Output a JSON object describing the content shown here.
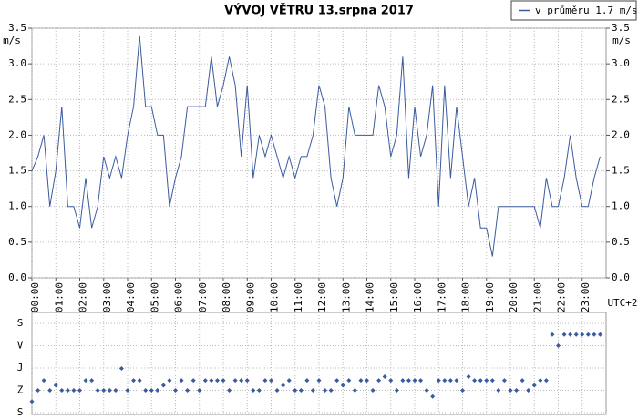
{
  "chart_data": [
    {
      "type": "line",
      "title": "VÝVOJ VĚTRU  13.srpna 2017",
      "y_unit": "m/s",
      "xlabel": "UTC+2",
      "legend": "top-right",
      "grid": true,
      "x": [
        0,
        0.25,
        0.5,
        0.75,
        1,
        1.25,
        1.5,
        1.75,
        2,
        2.25,
        2.5,
        2.75,
        3,
        3.25,
        3.5,
        3.75,
        4,
        4.25,
        4.5,
        4.75,
        5,
        5.25,
        5.5,
        5.75,
        6,
        6.25,
        6.5,
        6.75,
        7,
        7.25,
        7.5,
        7.75,
        8,
        8.25,
        8.5,
        8.75,
        9,
        9.25,
        9.5,
        9.75,
        10,
        10.25,
        10.5,
        10.75,
        11,
        11.25,
        11.5,
        11.75,
        12,
        12.25,
        12.5,
        12.75,
        13,
        13.25,
        13.5,
        13.75,
        14,
        14.25,
        14.5,
        14.75,
        15,
        15.25,
        15.5,
        15.75,
        16,
        16.25,
        16.5,
        16.75,
        17,
        17.25,
        17.5,
        17.75,
        18,
        18.25,
        18.5,
        18.75,
        19,
        19.25,
        19.5,
        19.75,
        20,
        20.25,
        20.5,
        20.75,
        21,
        21.25,
        21.5,
        21.75,
        22,
        22.25,
        22.5,
        22.75,
        23,
        23.25,
        23.5,
        23.75
      ],
      "series": [
        {
          "name": "v průměru 1.7 m/s",
          "color": "#3b5b9e",
          "values": [
            1.5,
            1.7,
            2.0,
            1.0,
            1.5,
            2.4,
            1.0,
            1.0,
            0.7,
            1.4,
            0.7,
            1.0,
            1.7,
            1.4,
            1.7,
            1.4,
            2.0,
            2.4,
            3.4,
            2.4,
            2.4,
            2.0,
            2.0,
            1.0,
            1.4,
            1.7,
            2.4,
            2.4,
            2.4,
            2.4,
            3.1,
            2.4,
            2.7,
            3.1,
            2.7,
            1.7,
            2.7,
            1.4,
            2.0,
            1.7,
            2.0,
            1.7,
            1.4,
            1.7,
            1.4,
            1.7,
            1.7,
            2.0,
            2.7,
            2.4,
            1.4,
            1.0,
            1.4,
            2.4,
            2.0,
            2.0,
            2.0,
            2.0,
            2.7,
            2.4,
            1.7,
            2.0,
            3.1,
            1.4,
            2.4,
            1.7,
            2.0,
            2.7,
            1.0,
            2.7,
            1.4,
            2.4,
            1.7,
            1.0,
            1.4,
            0.7,
            0.7,
            0.3,
            1.0,
            1.0,
            1.0,
            1.0,
            1.0,
            1.0,
            1.0,
            0.7,
            1.4,
            1.0,
            1.0,
            1.4,
            2.0,
            1.4,
            1.0,
            1.0,
            1.4,
            1.7
          ]
        }
      ],
      "xlim": [
        0,
        24
      ],
      "xticks": [
        {
          "value": 0,
          "label": "00:00"
        },
        {
          "value": 1,
          "label": "01:00"
        },
        {
          "value": 2,
          "label": "02:00"
        },
        {
          "value": 3,
          "label": "03:00"
        },
        {
          "value": 4,
          "label": "04:00"
        },
        {
          "value": 5,
          "label": "05:00"
        },
        {
          "value": 6,
          "label": "06:00"
        },
        {
          "value": 7,
          "label": "07:00"
        },
        {
          "value": 8,
          "label": "08:00"
        },
        {
          "value": 9,
          "label": "09:00"
        },
        {
          "value": 10,
          "label": "10:00"
        },
        {
          "value": 11,
          "label": "11:00"
        },
        {
          "value": 12,
          "label": "12:00"
        },
        {
          "value": 13,
          "label": "13:00"
        },
        {
          "value": 14,
          "label": "14:00"
        },
        {
          "value": 15,
          "label": "15:00"
        },
        {
          "value": 16,
          "label": "16:00"
        },
        {
          "value": 17,
          "label": "17:00"
        },
        {
          "value": 18,
          "label": "18:00"
        },
        {
          "value": 19,
          "label": "19:00"
        },
        {
          "value": 20,
          "label": "20:00"
        },
        {
          "value": 21,
          "label": "21:00"
        },
        {
          "value": 22,
          "label": "22:00"
        },
        {
          "value": 23,
          "label": "23:00"
        }
      ],
      "ylim": [
        0,
        3.5
      ],
      "yticks": [
        {
          "value": 0,
          "label": "0.0"
        },
        0.5,
        {
          "value": 1,
          "label": "1.0"
        },
        1.5,
        {
          "value": 2,
          "label": "2.0"
        },
        2.5,
        {
          "value": 3,
          "label": "3.0"
        },
        3.5
      ]
    },
    {
      "type": "scatter",
      "grid": true,
      "color": "#3b5b9e",
      "x": [
        0,
        0.25,
        0.5,
        0.75,
        1,
        1.25,
        1.5,
        1.75,
        2,
        2.25,
        2.5,
        2.75,
        3,
        3.25,
        3.5,
        3.75,
        4,
        4.25,
        4.5,
        4.75,
        5,
        5.25,
        5.5,
        5.75,
        6,
        6.25,
        6.5,
        6.75,
        7,
        7.25,
        7.5,
        7.75,
        8,
        8.25,
        8.5,
        8.75,
        9,
        9.25,
        9.5,
        9.75,
        10,
        10.25,
        10.5,
        10.75,
        11,
        11.25,
        11.5,
        11.75,
        12,
        12.25,
        12.5,
        12.75,
        13,
        13.25,
        13.5,
        13.75,
        14,
        14.25,
        14.5,
        14.75,
        15,
        15.25,
        15.5,
        15.75,
        16,
        16.25,
        16.5,
        16.75,
        17,
        17.25,
        17.5,
        17.75,
        18,
        18.25,
        18.5,
        18.75,
        19,
        19.25,
        19.5,
        19.75,
        20,
        20.25,
        20.5,
        20.75,
        21,
        21.25,
        21.5,
        21.75,
        22,
        22.25,
        22.5,
        22.75,
        23,
        23.25,
        23.5,
        23.75
      ],
      "values": [
        45,
        90,
        130,
        90,
        110,
        90,
        90,
        90,
        90,
        130,
        130,
        90,
        90,
        90,
        90,
        178,
        90,
        130,
        130,
        90,
        90,
        90,
        110,
        130,
        90,
        130,
        90,
        130,
        90,
        130,
        130,
        130,
        130,
        90,
        130,
        130,
        130,
        90,
        90,
        130,
        130,
        90,
        110,
        130,
        90,
        90,
        130,
        90,
        130,
        90,
        90,
        130,
        110,
        130,
        90,
        130,
        130,
        90,
        130,
        145,
        130,
        90,
        130,
        130,
        130,
        130,
        90,
        65,
        130,
        130,
        130,
        130,
        90,
        145,
        130,
        130,
        130,
        130,
        90,
        130,
        90,
        90,
        130,
        90,
        110,
        130,
        130,
        315,
        270,
        315,
        315,
        315,
        315,
        315,
        315,
        315
      ],
      "xlim": [
        0,
        24
      ],
      "ylim": [
        0,
        360
      ],
      "yticks": [
        {
          "value": 0,
          "label": "S"
        },
        {
          "value": 90,
          "label": "Z"
        },
        {
          "value": 180,
          "label": "J"
        },
        {
          "value": 270,
          "label": "V"
        },
        {
          "value": 360,
          "label": "S"
        }
      ]
    }
  ]
}
